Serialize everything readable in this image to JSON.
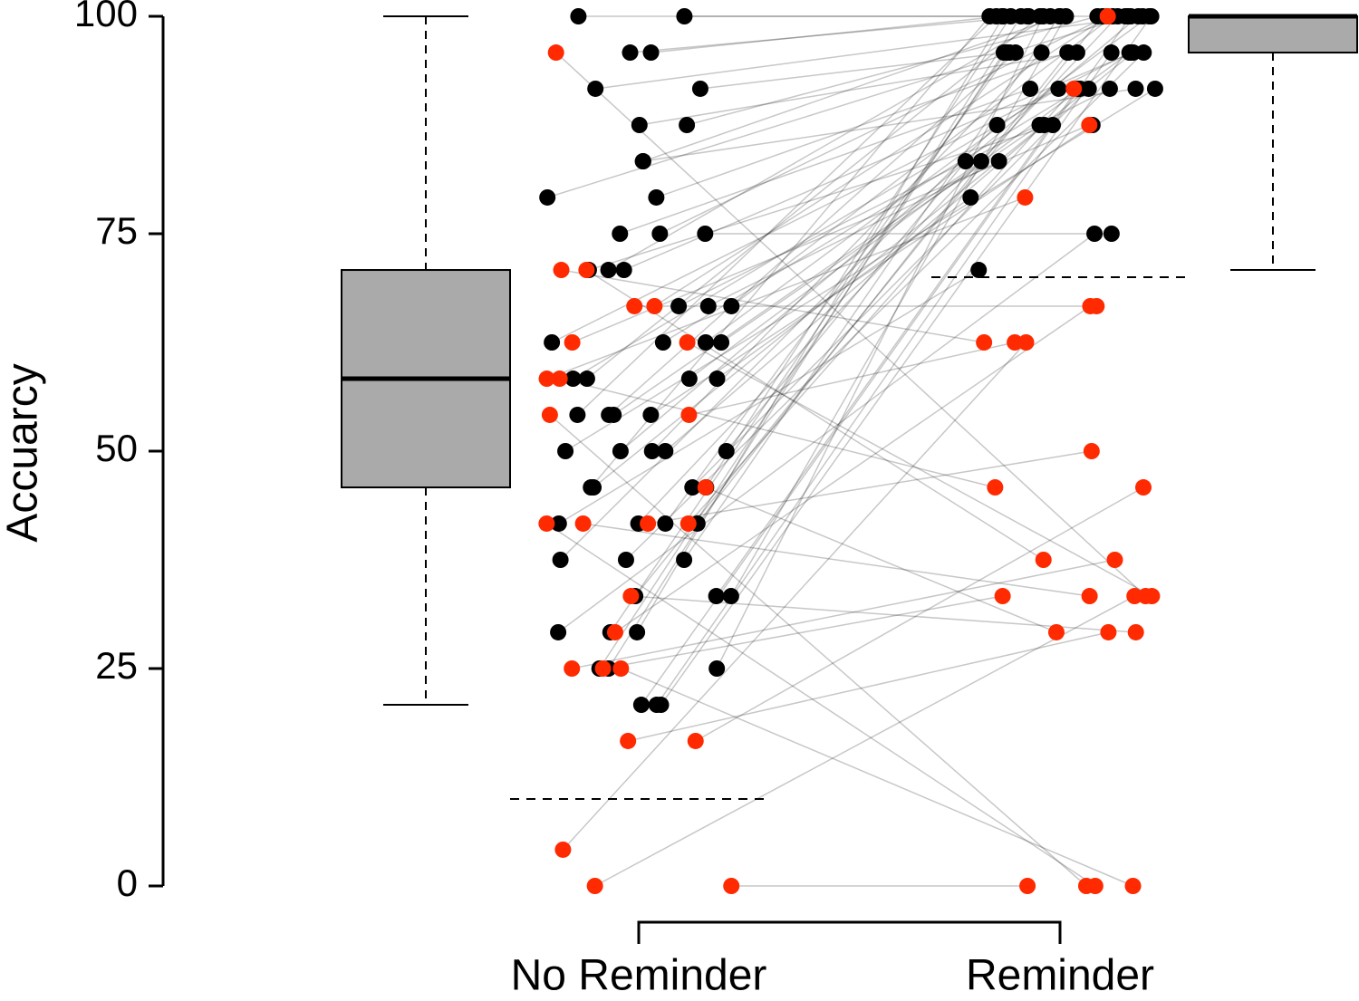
{
  "chart_data": {
    "type": "paired-dots-box",
    "y_label": "Accuarcy",
    "categories": [
      "No Reminder",
      "Reminder"
    ],
    "ylim": [
      0,
      100
    ],
    "yticks": [
      0,
      25,
      50,
      75,
      100
    ],
    "cutoffs": [
      10,
      70
    ],
    "boxes": [
      {
        "whisker_low": 20.83,
        "q1": 45.83,
        "median": 58.33,
        "q3": 70.83,
        "whisker_high": 100,
        "color": "#aaaaaa"
      },
      {
        "whisker_low": 70.83,
        "q1": 95.83,
        "median": 100,
        "q3": 100,
        "whisker_high": 100,
        "color": "#aaaaaa"
      }
    ],
    "series": [
      {
        "color": "#000000",
        "values": [
          [
            100,
            100,
            95.83,
            95.83,
            91.67,
            91.67,
            87.5,
            87.5,
            83.33,
            83.33,
            79.17,
            79.17,
            75,
            75,
            75,
            70.83,
            70.83,
            70.83,
            66.67,
            66.67,
            66.67,
            62.5,
            62.5,
            62.5,
            62.5,
            58.33,
            58.33,
            58.33,
            58.33,
            54.17,
            54.17,
            54.17,
            54.17,
            50,
            50,
            50,
            50,
            50,
            45.83,
            45.83,
            45.83,
            45.83,
            41.67,
            41.67,
            41.67,
            41.67,
            37.5,
            37.5,
            37.5,
            33.33,
            33.33,
            33.33,
            29.17,
            29.17,
            29.17,
            25,
            25,
            25,
            20.83,
            20.83,
            20.83
          ],
          [
            100,
            100,
            100,
            100,
            100,
            95.83,
            100,
            95.83,
            100,
            91.67,
            100,
            95.83,
            100,
            91.67,
            75,
            100,
            95.83,
            87.5,
            100,
            91.67,
            83.33,
            100,
            95.83,
            91.67,
            87.5,
            100,
            95.83,
            91.67,
            79.17,
            100,
            95.83,
            87.5,
            83.33,
            100,
            95.83,
            91.67,
            87.5,
            83.33,
            100,
            95.83,
            91.67,
            100,
            95.83,
            70.83,
            100,
            95.83,
            100,
            87.5,
            95.83,
            100,
            91.67,
            100,
            95.83,
            100,
            75,
            100,
            95.83,
            100,
            100,
            95.83,
            100
          ]
        ]
      },
      {
        "color": "#ff2a00",
        "values": [
          [
            0,
            0,
            4.17,
            16.67,
            16.67,
            25,
            25,
            25,
            29.17,
            33.33,
            41.67,
            41.67,
            41.67,
            45.83,
            54.17,
            54.17,
            58.33,
            62.5,
            66.67,
            70.83,
            70.83,
            95.83,
            58.33,
            66.67,
            62.5,
            41.67
          ],
          [
            33.33,
            0,
            62.5,
            29.17,
            45.83,
            0,
            33.33,
            37.5,
            66.67,
            29.17,
            0,
            33.33,
            50,
            29.17,
            62.5,
            0,
            45.83,
            33.33,
            66.67,
            37.5,
            62.5,
            33.33,
            79.17,
            100,
            87.5,
            91.67
          ]
        ]
      }
    ]
  }
}
